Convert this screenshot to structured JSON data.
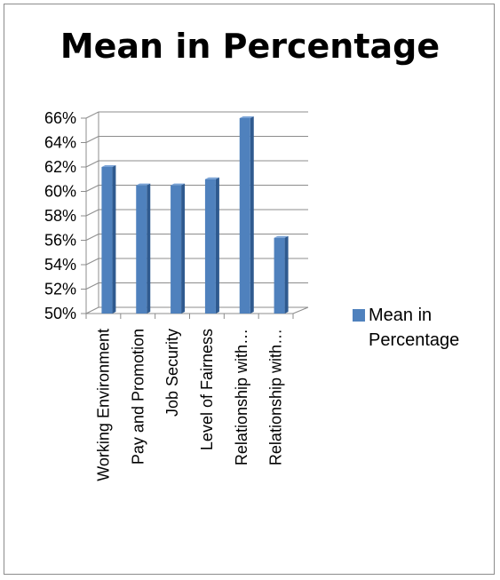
{
  "chart_data": {
    "type": "bar",
    "title": "Mean in Percentage",
    "categories": [
      "Working Environment",
      "Pay and Promotion",
      "Job Security",
      "Level of Fairness",
      "Relationship  with…",
      "Relationship  with…"
    ],
    "series": [
      {
        "name": "Mean in Percentage",
        "values": [
          62,
          60.5,
          60.5,
          61,
          66,
          56.2
        ],
        "color": "#4f81bd"
      }
    ],
    "yticks": [
      "50%",
      "52%",
      "54%",
      "56%",
      "58%",
      "60%",
      "62%",
      "64%",
      "66%"
    ],
    "ylim": [
      50,
      66
    ],
    "grid": true,
    "legend_position": "right",
    "xlabel": "",
    "ylabel": ""
  }
}
